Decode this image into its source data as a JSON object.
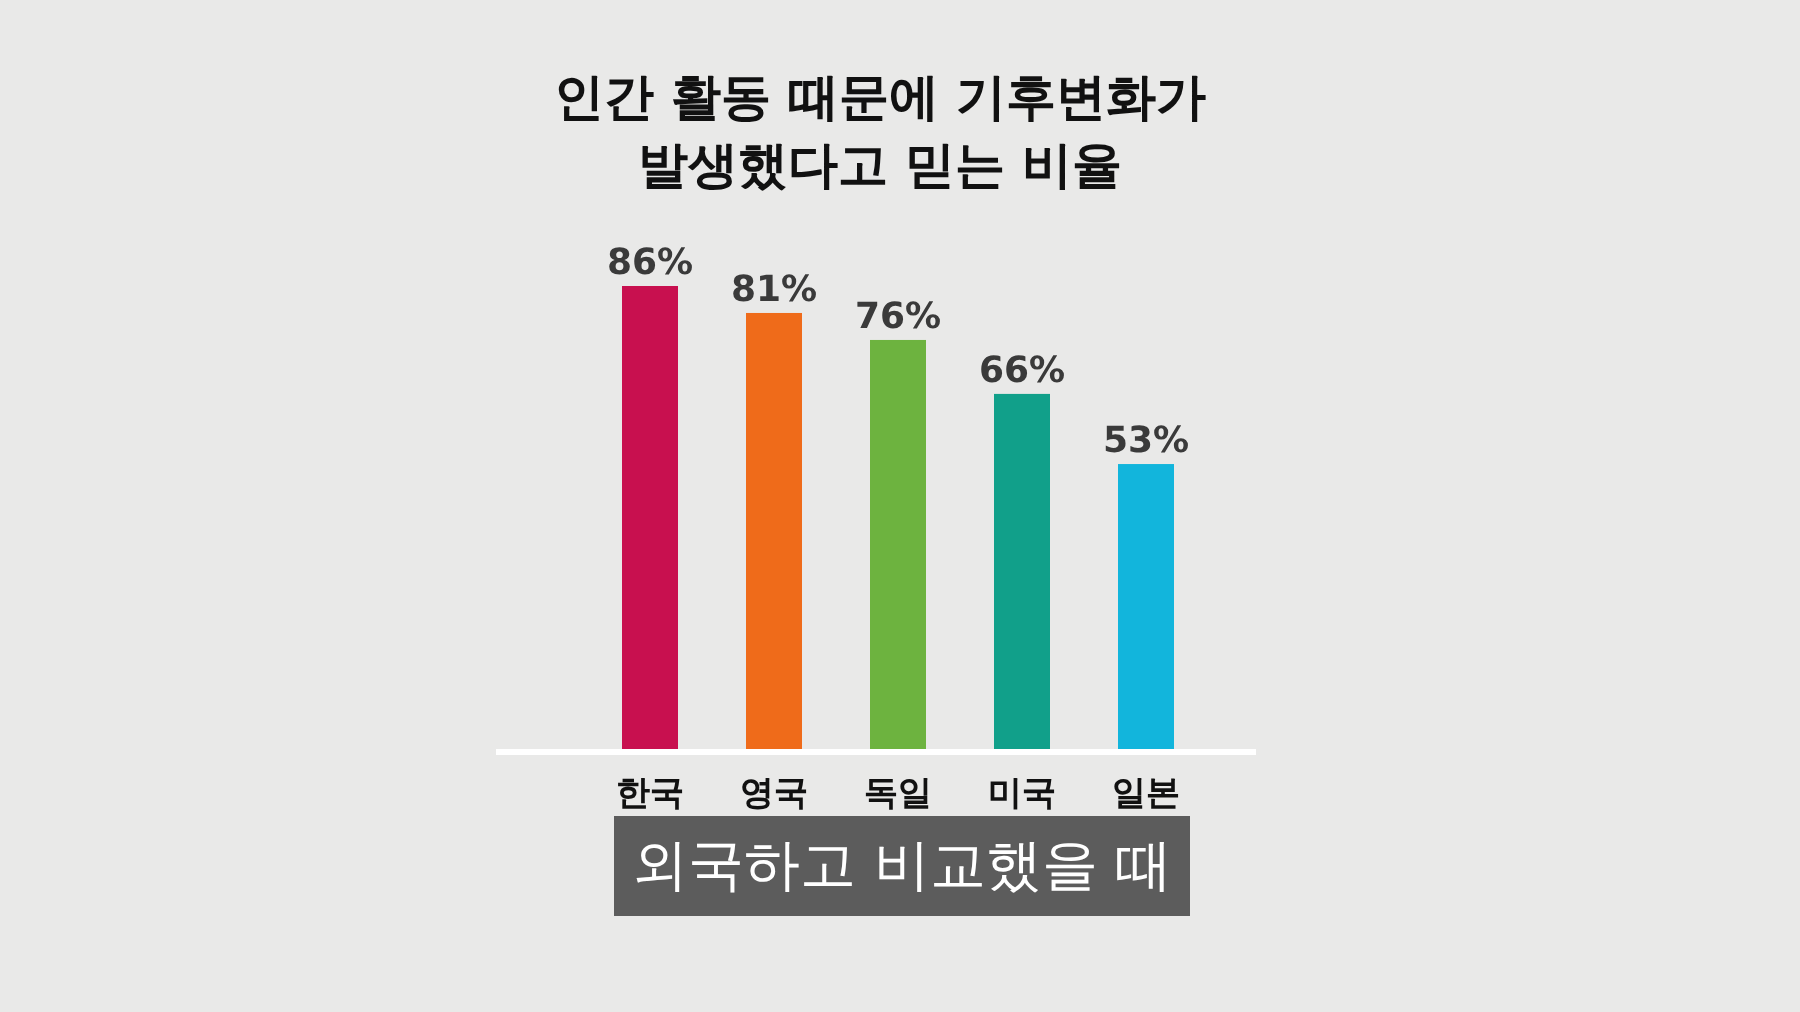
{
  "chart_data": {
    "type": "bar",
    "title": "인간 활동 때문에 기후변화가 발생했다고 믿는 비율",
    "categories": [
      "한국",
      "영국",
      "독일",
      "미국",
      "일본"
    ],
    "values": [
      86,
      81,
      76,
      66,
      53
    ],
    "colors": [
      "#c8104f",
      "#ef6b1a",
      "#6db33f",
      "#11a08a",
      "#12b5dc"
    ],
    "value_labels": [
      "86%",
      "81%",
      "76%",
      "66%",
      "53%"
    ],
    "relative": false,
    "annotations": [
      "외국하고 비교했을 때"
    ]
  }
}
